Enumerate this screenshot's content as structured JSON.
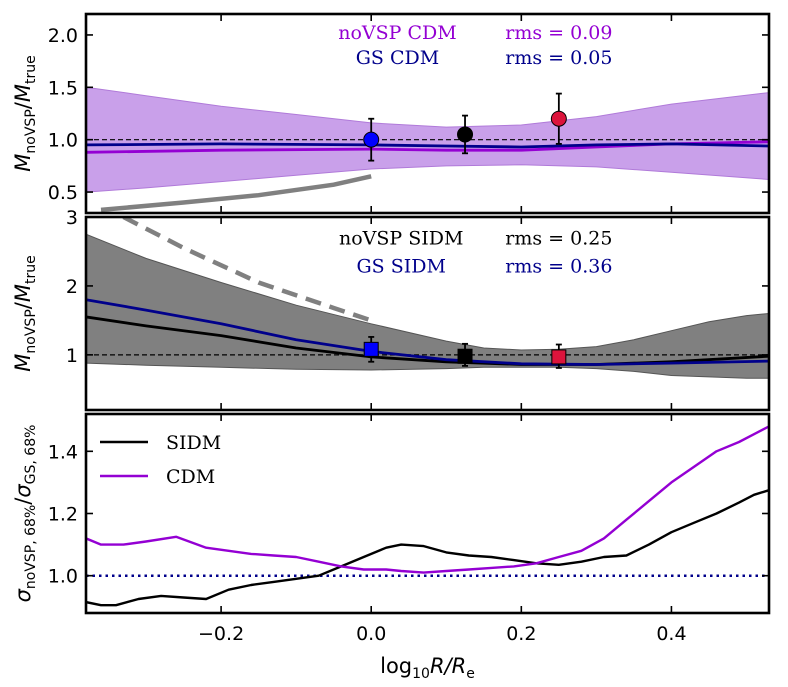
{
  "chart_data": {
    "type": "line",
    "x_axis": {
      "label_main": "log",
      "label_sub": "10",
      "label_rest": "R/R",
      "label_rest_sub": "e",
      "xlim": [
        -0.38,
        0.53
      ],
      "ticks": [
        -0.2,
        0.0,
        0.2,
        0.4
      ],
      "tick_labels": [
        "−0.2",
        "0.0",
        "0.2",
        "0.4"
      ]
    },
    "panels": [
      {
        "id": "top",
        "ylabel": {
          "m1": "M",
          "s1": "noVSP",
          "slash": "/",
          "m2": "M",
          "s2": "true"
        },
        "ylim": [
          0.3,
          2.2
        ],
        "yticks": [
          0.5,
          1.0,
          1.5,
          2.0
        ],
        "ytick_labels": [
          "0.5",
          "1.0",
          "1.5",
          "2.0"
        ],
        "reference_line": 1.0,
        "annotations": [
          {
            "text": "noVSP CDM",
            "color": "#9400d3",
            "x": 0.035,
            "y": 2.03
          },
          {
            "text": "rms = 0.09",
            "color": "#9400d3",
            "x": 0.25,
            "y": 2.03
          },
          {
            "text": "GS CDM",
            "color": "#00008b",
            "x": 0.035,
            "y": 1.79
          },
          {
            "text": "rms = 0.05",
            "color": "#00008b",
            "x": 0.25,
            "y": 1.79
          }
        ],
        "band": {
          "color": "#c9a0ea",
          "edge": "#b07ad9",
          "x": [
            -0.38,
            -0.3,
            -0.2,
            -0.1,
            0.0,
            0.1,
            0.2,
            0.3,
            0.4,
            0.53
          ],
          "lower": [
            0.5,
            0.54,
            0.6,
            0.66,
            0.72,
            0.75,
            0.76,
            0.74,
            0.69,
            0.62
          ],
          "upper": [
            1.5,
            1.42,
            1.32,
            1.24,
            1.16,
            1.12,
            1.14,
            1.22,
            1.34,
            1.45
          ]
        },
        "series": [
          {
            "name": "noVSP CDM",
            "color": "#9400d3",
            "x": [
              -0.38,
              -0.2,
              0.0,
              0.1,
              0.2,
              0.3,
              0.4,
              0.53
            ],
            "y": [
              0.88,
              0.9,
              0.91,
              0.9,
              0.9,
              0.93,
              0.96,
              0.98
            ]
          },
          {
            "name": "GS CDM",
            "color": "#00008b",
            "x": [
              -0.38,
              -0.2,
              0.0,
              0.1,
              0.2,
              0.3,
              0.4,
              0.53
            ],
            "y": [
              0.95,
              0.96,
              0.95,
              0.94,
              0.93,
              0.95,
              0.96,
              0.94
            ]
          }
        ],
        "trend": {
          "x": [
            -0.36,
            -0.25,
            -0.15,
            -0.05,
            0.0
          ],
          "y": [
            0.33,
            0.4,
            0.47,
            0.57,
            0.65
          ],
          "color": "#808080",
          "dash": false
        },
        "points": [
          {
            "x": 0.0,
            "y": 1.0,
            "err_lo": 0.2,
            "err_hi": 0.2,
            "color": "#0000ff",
            "marker": "circle"
          },
          {
            "x": 0.125,
            "y": 1.05,
            "err_lo": 0.18,
            "err_hi": 0.18,
            "color": "#000000",
            "marker": "circle"
          },
          {
            "x": 0.25,
            "y": 1.2,
            "err_lo": 0.24,
            "err_hi": 0.24,
            "color": "#dc143c",
            "marker": "circle"
          }
        ]
      },
      {
        "id": "middle",
        "ylabel": {
          "m1": "M",
          "s1": "noVSP",
          "slash": "/",
          "m2": "M",
          "s2": "true"
        },
        "ylim": [
          0.2,
          3.0
        ],
        "yticks": [
          1,
          2,
          3
        ],
        "ytick_labels": [
          "1",
          "2",
          "3"
        ],
        "reference_line": 1.0,
        "annotations": [
          {
            "text": "noVSP SIDM",
            "color": "#000000",
            "x": 0.04,
            "y": 2.7
          },
          {
            "text": "rms = 0.25",
            "color": "#000000",
            "x": 0.25,
            "y": 2.7
          },
          {
            "text": "GS SIDM",
            "color": "#00008b",
            "x": 0.04,
            "y": 2.3
          },
          {
            "text": "rms = 0.36",
            "color": "#00008b",
            "x": 0.25,
            "y": 2.3
          }
        ],
        "band": {
          "color": "#808080",
          "edge": "#555555",
          "x": [
            -0.38,
            -0.3,
            -0.2,
            -0.1,
            0.0,
            0.1,
            0.15,
            0.2,
            0.25,
            0.3,
            0.35,
            0.4,
            0.45,
            0.5,
            0.53
          ],
          "lower": [
            0.88,
            0.85,
            0.82,
            0.79,
            0.78,
            0.8,
            0.82,
            0.82,
            0.82,
            0.8,
            0.76,
            0.7,
            0.68,
            0.66,
            0.66
          ],
          "upper": [
            2.75,
            2.4,
            2.05,
            1.72,
            1.45,
            1.2,
            1.1,
            1.07,
            1.08,
            1.12,
            1.22,
            1.35,
            1.48,
            1.57,
            1.6
          ]
        },
        "series": [
          {
            "name": "noVSP SIDM",
            "color": "#000000",
            "x": [
              -0.38,
              -0.3,
              -0.2,
              -0.1,
              0.0,
              0.1,
              0.2,
              0.3,
              0.4,
              0.53
            ],
            "y": [
              1.55,
              1.42,
              1.28,
              1.1,
              0.97,
              0.9,
              0.86,
              0.86,
              0.9,
              0.98
            ]
          },
          {
            "name": "GS SIDM",
            "color": "#00008b",
            "x": [
              -0.38,
              -0.3,
              -0.2,
              -0.1,
              0.0,
              0.1,
              0.2,
              0.3,
              0.4,
              0.53
            ],
            "y": [
              1.8,
              1.65,
              1.45,
              1.22,
              1.05,
              0.93,
              0.87,
              0.86,
              0.88,
              0.91
            ]
          }
        ],
        "trend": {
          "x": [
            -0.33,
            -0.25,
            -0.15,
            -0.05,
            0.0
          ],
          "y": [
            3.0,
            2.55,
            2.05,
            1.68,
            1.5
          ],
          "color": "#808080",
          "dash": true
        },
        "points": [
          {
            "x": 0.0,
            "y": 1.08,
            "err_lo": 0.18,
            "err_hi": 0.18,
            "color": "#0000ff",
            "marker": "square"
          },
          {
            "x": 0.125,
            "y": 0.98,
            "err_lo": 0.14,
            "err_hi": 0.18,
            "color": "#000000",
            "marker": "square"
          },
          {
            "x": 0.25,
            "y": 0.97,
            "err_lo": 0.16,
            "err_hi": 0.18,
            "color": "#dc143c",
            "marker": "square"
          }
        ]
      },
      {
        "id": "bottom",
        "ylabel": {
          "m1": "σ",
          "s1": "noVSP, 68%",
          "slash": "/",
          "m2": "σ",
          "s2": "GS, 68%"
        },
        "ylim": [
          0.88,
          1.52
        ],
        "yticks": [
          1.0,
          1.2,
          1.4
        ],
        "ytick_labels": [
          "1.0",
          "1.2",
          "1.4"
        ],
        "reference_line": 1.0,
        "legend": [
          {
            "label": "SIDM",
            "color": "#000000"
          },
          {
            "label": "CDM",
            "color": "#9400d3"
          }
        ],
        "series": [
          {
            "name": "SIDM",
            "color": "#000000",
            "x": [
              -0.38,
              -0.36,
              -0.34,
              -0.31,
              -0.28,
              -0.25,
              -0.22,
              -0.19,
              -0.16,
              -0.13,
              -0.1,
              -0.07,
              -0.04,
              -0.01,
              0.02,
              0.04,
              0.07,
              0.1,
              0.13,
              0.16,
              0.19,
              0.22,
              0.25,
              0.28,
              0.31,
              0.34,
              0.37,
              0.4,
              0.43,
              0.46,
              0.49,
              0.51,
              0.53
            ],
            "y": [
              0.915,
              0.905,
              0.905,
              0.925,
              0.935,
              0.93,
              0.925,
              0.955,
              0.97,
              0.98,
              0.99,
              1.0,
              1.03,
              1.06,
              1.09,
              1.1,
              1.095,
              1.075,
              1.065,
              1.06,
              1.05,
              1.04,
              1.035,
              1.045,
              1.06,
              1.065,
              1.1,
              1.14,
              1.17,
              1.2,
              1.235,
              1.26,
              1.275
            ]
          },
          {
            "name": "CDM",
            "color": "#9400d3",
            "x": [
              -0.38,
              -0.36,
              -0.33,
              -0.3,
              -0.26,
              -0.22,
              -0.19,
              -0.16,
              -0.13,
              -0.1,
              -0.07,
              -0.04,
              -0.01,
              0.02,
              0.04,
              0.07,
              0.1,
              0.13,
              0.16,
              0.19,
              0.22,
              0.25,
              0.28,
              0.31,
              0.34,
              0.37,
              0.4,
              0.43,
              0.46,
              0.49,
              0.51,
              0.53
            ],
            "y": [
              1.12,
              1.1,
              1.1,
              1.11,
              1.125,
              1.09,
              1.08,
              1.07,
              1.065,
              1.06,
              1.045,
              1.03,
              1.02,
              1.02,
              1.015,
              1.01,
              1.015,
              1.02,
              1.025,
              1.03,
              1.04,
              1.06,
              1.08,
              1.12,
              1.18,
              1.24,
              1.3,
              1.35,
              1.4,
              1.43,
              1.455,
              1.48
            ]
          }
        ]
      }
    ]
  }
}
